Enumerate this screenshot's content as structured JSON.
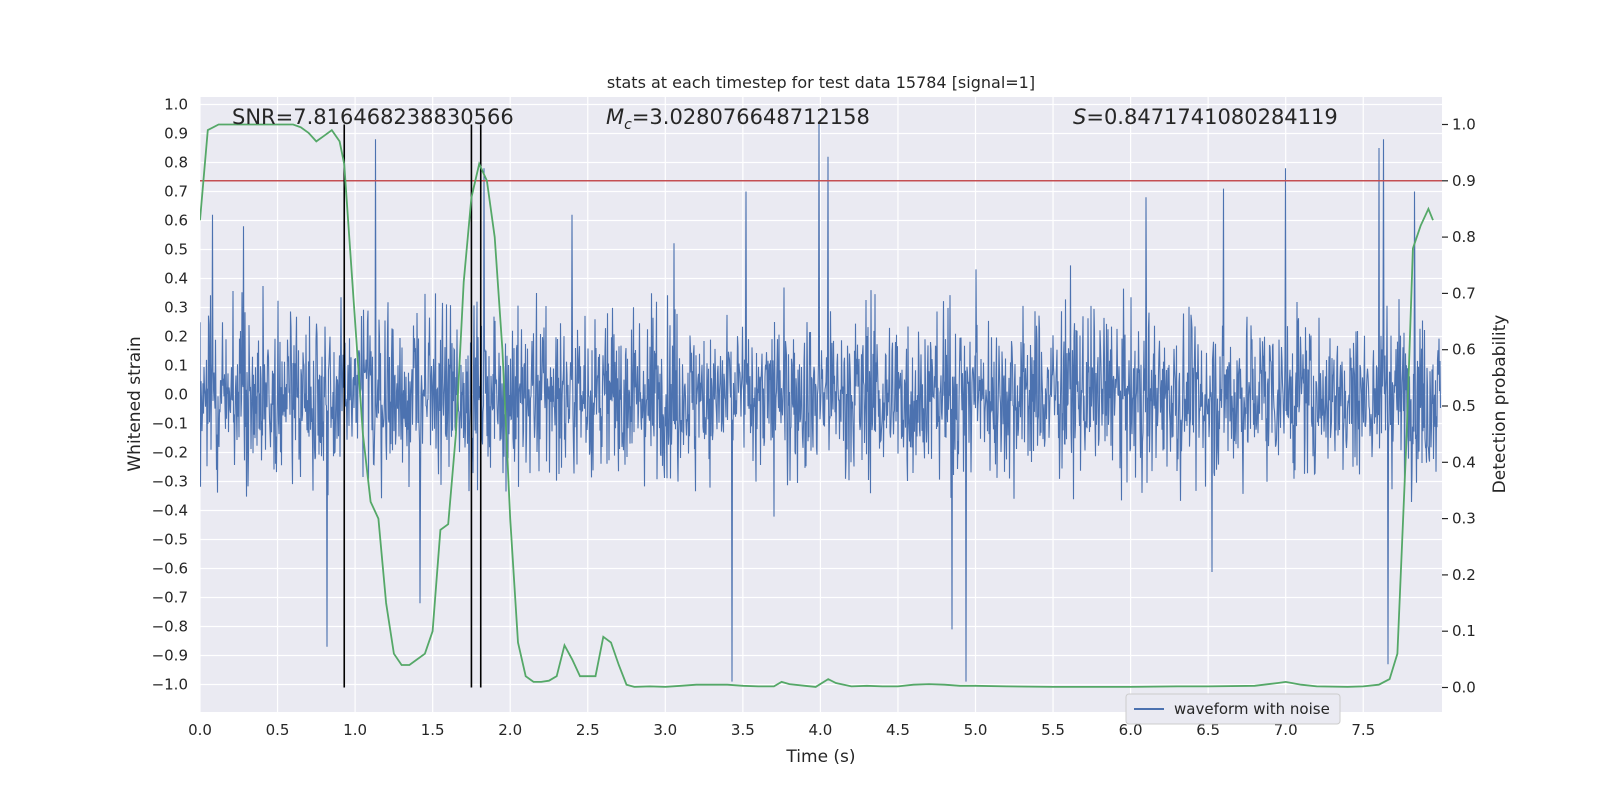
{
  "chart_data": {
    "type": "line",
    "title": "stats at each timestep for test data 15784 [signal=1]",
    "xlabel": "Time (s)",
    "ylabel_left": "Whitened strain",
    "ylabel_right": "Detection probability",
    "xlim": [
      0.0,
      8.0
    ],
    "ylim_left": [
      -1.1,
      1.05
    ],
    "ylim_right": [
      -0.048,
      1.048
    ],
    "x_ticks": [
      "0.0",
      "0.5",
      "1.0",
      "1.5",
      "2.0",
      "2.5",
      "3.0",
      "3.5",
      "4.0",
      "4.5",
      "5.0",
      "5.5",
      "6.0",
      "6.5",
      "7.0",
      "7.5"
    ],
    "y_ticks_left": [
      "1.0",
      "0.9",
      "0.8",
      "0.7",
      "0.6",
      "0.5",
      "0.4",
      "0.3",
      "0.2",
      "0.1",
      "0.0",
      "-0.1",
      "-0.2",
      "-0.3",
      "-0.4",
      "-0.5",
      "-0.6",
      "-0.7",
      "-0.8",
      "-0.9",
      "-1.0"
    ],
    "y_ticks_right": [
      "1.0",
      "0.9",
      "0.8",
      "0.7",
      "0.6",
      "0.5",
      "0.4",
      "0.3",
      "0.2",
      "0.1",
      "0.0"
    ],
    "annotations": {
      "snr": "SNR=7.816468238830566",
      "mc_symbol": "M",
      "mc_sub": "c",
      "mc_value": "=3.028076648712158",
      "s_symbol": "S",
      "s_value": "=0.8471741080284119"
    },
    "legend": {
      "label": "waveform with noise",
      "placement": "lower right"
    },
    "grid": true,
    "threshold": {
      "value": 0.9,
      "axis": "right",
      "color": "#c44e52"
    },
    "vertical_markers": [
      0.93,
      1.75,
      1.81
    ],
    "series": [
      {
        "name": "waveform with noise",
        "axis": "left",
        "color": "#4c72b0",
        "style": "dense noise, envelope approx ±0.35 typical, peaks listed",
        "envelope": 0.35,
        "peaks": [
          [
            0.08,
            0.62
          ],
          [
            0.28,
            0.58
          ],
          [
            0.82,
            -0.87
          ],
          [
            1.13,
            0.88
          ],
          [
            1.42,
            -0.72
          ],
          [
            1.83,
            0.78
          ],
          [
            2.4,
            0.62
          ],
          [
            3.43,
            -0.99
          ],
          [
            3.52,
            0.7
          ],
          [
            3.99,
            0.94
          ],
          [
            4.05,
            0.82
          ],
          [
            4.85,
            -0.81
          ],
          [
            4.94,
            -0.99
          ],
          [
            6.1,
            0.68
          ],
          [
            6.6,
            0.71
          ],
          [
            7.0,
            0.78
          ],
          [
            7.6,
            0.85
          ],
          [
            7.63,
            0.88
          ],
          [
            7.66,
            -0.93
          ],
          [
            7.83,
            0.7
          ]
        ]
      },
      {
        "name": "",
        "axis": "right",
        "color": "#55a868",
        "x": [
          0.0,
          0.05,
          0.12,
          0.2,
          0.3,
          0.4,
          0.5,
          0.6,
          0.65,
          0.7,
          0.75,
          0.8,
          0.85,
          0.9,
          0.93,
          1.0,
          1.05,
          1.1,
          1.15,
          1.2,
          1.25,
          1.3,
          1.35,
          1.4,
          1.45,
          1.5,
          1.55,
          1.6,
          1.65,
          1.7,
          1.75,
          1.8,
          1.85,
          1.9,
          1.95,
          2.0,
          2.05,
          2.1,
          2.15,
          2.2,
          2.25,
          2.3,
          2.35,
          2.4,
          2.45,
          2.5,
          2.55,
          2.6,
          2.65,
          2.7,
          2.75,
          2.8,
          2.9,
          3.0,
          3.1,
          3.2,
          3.3,
          3.4,
          3.5,
          3.6,
          3.7,
          3.75,
          3.8,
          3.9,
          3.97,
          4.05,
          4.1,
          4.2,
          4.3,
          4.4,
          4.5,
          4.6,
          4.7,
          4.8,
          4.9,
          5.0,
          5.2,
          5.5,
          6.0,
          6.3,
          6.5,
          6.8,
          6.95,
          7.0,
          7.1,
          7.2,
          7.4,
          7.5,
          7.6,
          7.67,
          7.72,
          7.78,
          7.82,
          7.87,
          7.92,
          7.95
        ],
        "y": [
          0.83,
          0.99,
          1.0,
          1.0,
          1.0,
          1.0,
          1.0,
          1.0,
          0.995,
          0.985,
          0.97,
          0.98,
          0.99,
          0.97,
          0.93,
          0.65,
          0.45,
          0.33,
          0.3,
          0.15,
          0.06,
          0.04,
          0.04,
          0.05,
          0.06,
          0.1,
          0.28,
          0.29,
          0.45,
          0.72,
          0.87,
          0.93,
          0.9,
          0.8,
          0.6,
          0.3,
          0.08,
          0.02,
          0.01,
          0.01,
          0.012,
          0.02,
          0.075,
          0.05,
          0.02,
          0.02,
          0.02,
          0.09,
          0.08,
          0.04,
          0.005,
          0.001,
          0.002,
          0.001,
          0.003,
          0.005,
          0.005,
          0.005,
          0.003,
          0.002,
          0.002,
          0.01,
          0.006,
          0.003,
          0.001,
          0.015,
          0.008,
          0.002,
          0.003,
          0.002,
          0.002,
          0.005,
          0.006,
          0.005,
          0.003,
          0.003,
          0.002,
          0.001,
          0.001,
          0.002,
          0.002,
          0.003,
          0.008,
          0.01,
          0.005,
          0.002,
          0.001,
          0.002,
          0.005,
          0.015,
          0.06,
          0.45,
          0.78,
          0.82,
          0.85,
          0.83
        ]
      }
    ]
  }
}
